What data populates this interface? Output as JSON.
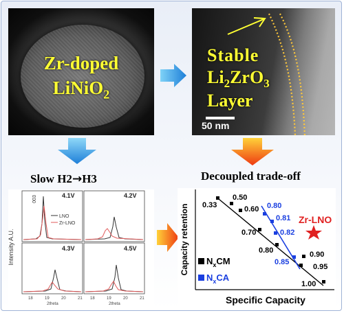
{
  "top_left": {
    "line1": "Zr-doped",
    "line2_main": "LiNiO",
    "line2_sub": "2"
  },
  "top_right": {
    "line1": "Stable",
    "line2_a": "Li",
    "line2_sub1": "2",
    "line2_b": "ZrO",
    "line2_sub2": "3",
    "line3": "Layer",
    "scale": "50 nm"
  },
  "bottom_left": {
    "title_a": "Slow H2",
    "title_arrow": "→",
    "title_b": "H3",
    "ylabel": "Intensity A.U.",
    "xlabel": "2theta",
    "peak_label": "003",
    "legend": [
      {
        "name": "LNO",
        "color": "#333333"
      },
      {
        "name": "Zr-LNO",
        "color": "#e05a5a"
      }
    ],
    "subplots": [
      {
        "voltage": "4.1V",
        "ticks": [
          "18",
          "19",
          "20",
          "21"
        ]
      },
      {
        "voltage": "4.2V",
        "ticks": [
          "18",
          "19",
          "20",
          "21"
        ]
      },
      {
        "voltage": "4.3V",
        "ticks": [
          "18",
          "19",
          "20",
          "21"
        ]
      },
      {
        "voltage": "4.5V",
        "ticks": [
          "18",
          "19",
          "20",
          "21"
        ]
      }
    ]
  },
  "bottom_right": {
    "title": "Decoupled trade-off",
    "ylabel": "Capacity retention",
    "xlabel": "Specific Capacity",
    "star_label": "Zr-LNO",
    "legend_cm_main": "N",
    "legend_cm_sub": "x",
    "legend_cm_rest": "CM",
    "legend_ca_main": "N",
    "legend_ca_sub": "x",
    "legend_ca_rest": "CA"
  },
  "colors": {
    "accent_yellow": "#ffff33",
    "arrow_blue": "#1e90e0",
    "arrow_orange": "#f47a20",
    "star_red": "#e02020",
    "nca_blue": "#1a3fe0"
  },
  "chart_data": [
    {
      "type": "scatter",
      "title": "Decoupled trade-off",
      "xlabel": "Specific Capacity",
      "ylabel": "Capacity retention",
      "series": [
        {
          "name": "NxCM",
          "labels": [
            "0.33",
            "0.50",
            "0.60",
            "0.70",
            "0.80",
            "0.90",
            "0.95",
            "1.00"
          ]
        },
        {
          "name": "NxCA",
          "labels": [
            "0.80",
            "0.81",
            "0.82",
            "0.85"
          ]
        }
      ],
      "annotations": [
        "Zr-LNO"
      ]
    },
    {
      "type": "line",
      "title": "Slow H2 → H3",
      "xlabel": "2theta",
      "ylabel": "Intensity A.U.",
      "x_ticks": [
        "18",
        "19",
        "20",
        "21"
      ],
      "series": [
        {
          "name": "LNO"
        },
        {
          "name": "Zr-LNO"
        }
      ],
      "panels": [
        "4.1V",
        "4.2V",
        "4.3V",
        "4.5V"
      ]
    }
  ]
}
